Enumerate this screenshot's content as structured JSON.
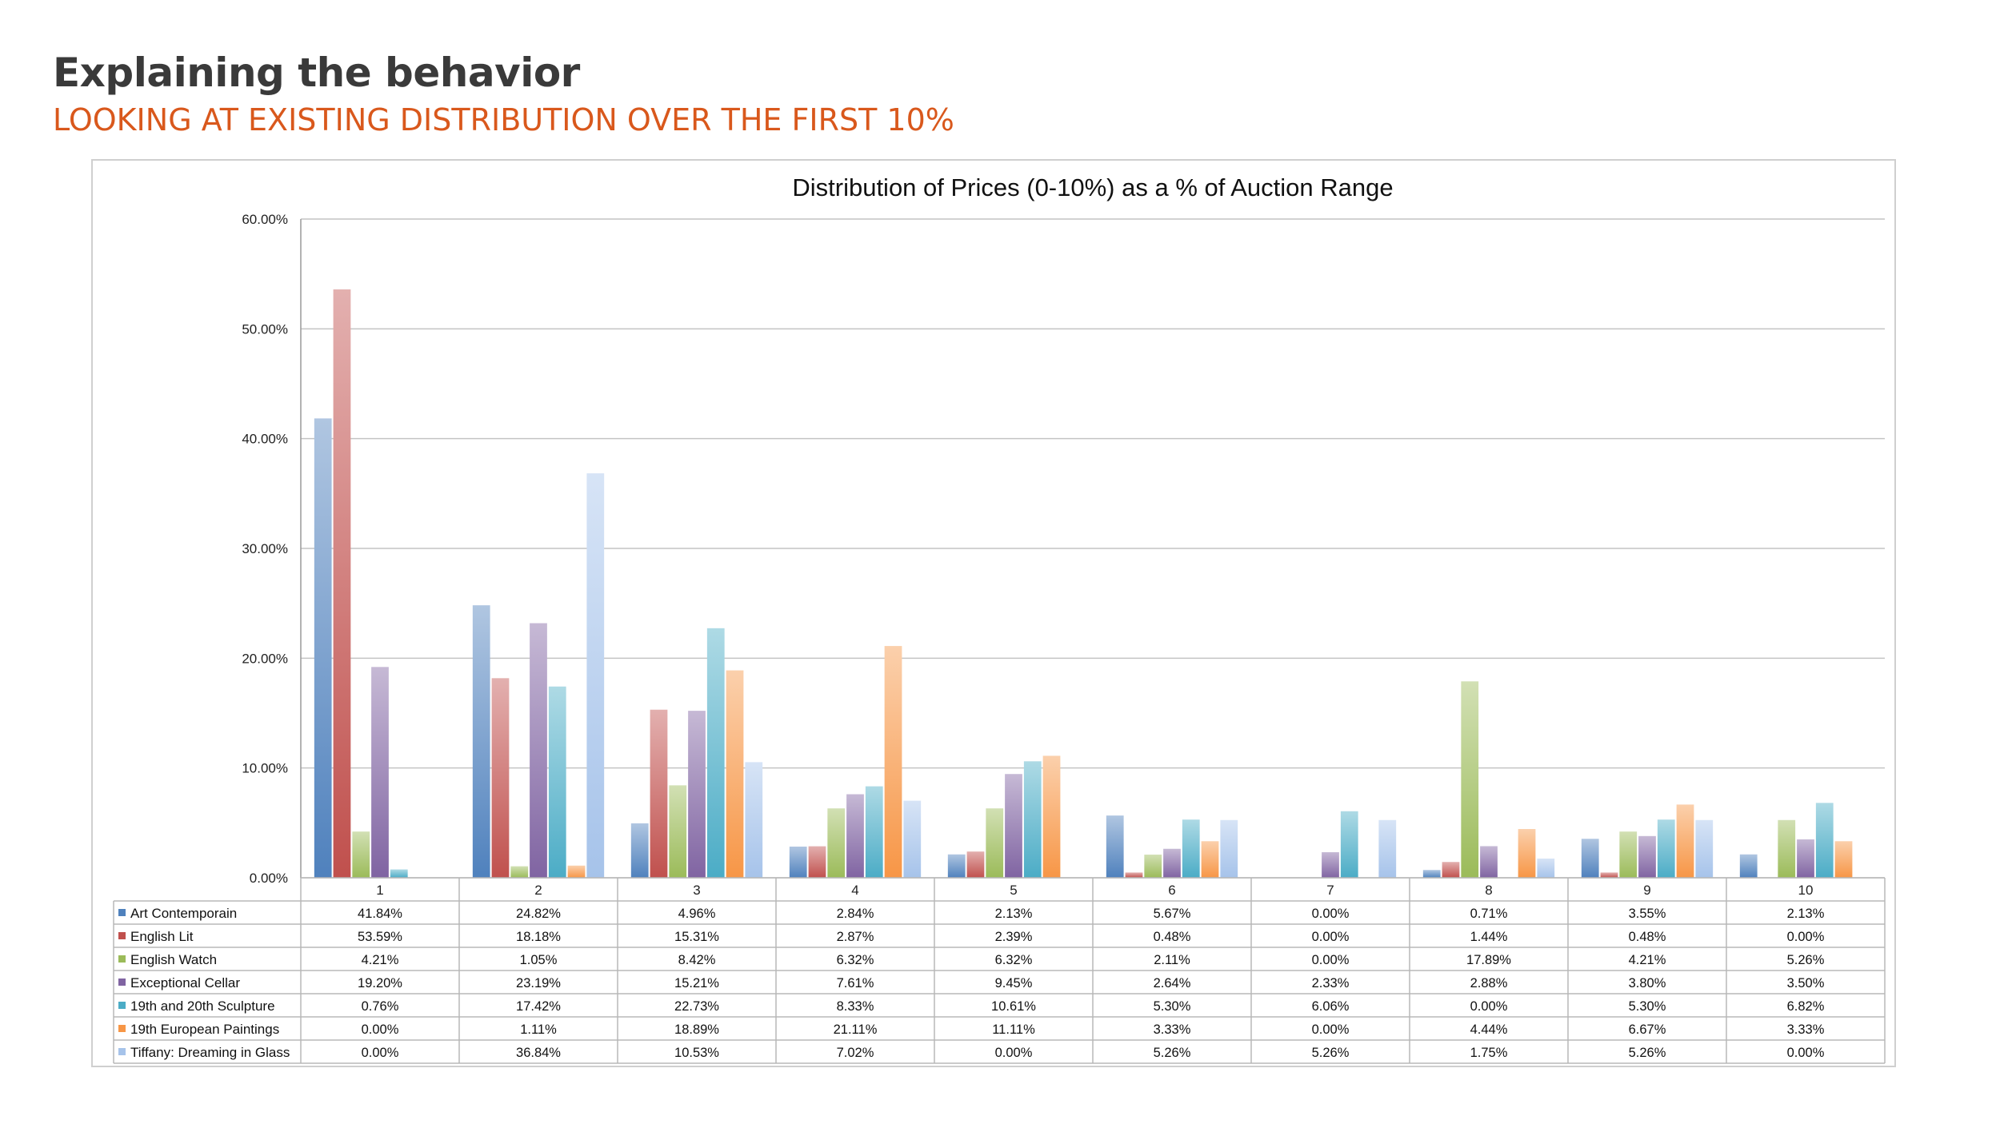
{
  "slide": {
    "title": "Explaining the behavior",
    "subtitle": "LOOKING AT EXISTING DISTRIBUTION OVER THE FIRST 10%"
  },
  "chart_data": {
    "type": "bar",
    "title": "Distribution of Prices (0-10%) as a % of Auction Range",
    "xlabel": "",
    "ylabel": "",
    "ylim": [
      0,
      60
    ],
    "y_ticks": [
      "0.00%",
      "10.00%",
      "20.00%",
      "30.00%",
      "40.00%",
      "50.00%",
      "60.00%"
    ],
    "grid": true,
    "legend_placement": "data-table-left",
    "categories": [
      "1",
      "2",
      "3",
      "4",
      "5",
      "6",
      "7",
      "8",
      "9",
      "10"
    ],
    "series": [
      {
        "name": "Art Contemporain",
        "color": "#4f81bd",
        "values": [
          41.84,
          24.82,
          4.96,
          2.84,
          2.13,
          5.67,
          0.0,
          0.71,
          3.55,
          2.13
        ],
        "labels": [
          "41.84%",
          "24.82%",
          "4.96%",
          "2.84%",
          "2.13%",
          "5.67%",
          "0.00%",
          "0.71%",
          "3.55%",
          "2.13%"
        ]
      },
      {
        "name": "English Lit",
        "color": "#c0504d",
        "values": [
          53.59,
          18.18,
          15.31,
          2.87,
          2.39,
          0.48,
          0.0,
          1.44,
          0.48,
          0.0
        ],
        "labels": [
          "53.59%",
          "18.18%",
          "15.31%",
          "2.87%",
          "2.39%",
          "0.48%",
          "0.00%",
          "1.44%",
          "0.48%",
          "0.00%"
        ]
      },
      {
        "name": "English Watch",
        "color": "#9bbb59",
        "values": [
          4.21,
          1.05,
          8.42,
          6.32,
          6.32,
          2.11,
          0.0,
          17.89,
          4.21,
          5.26
        ],
        "labels": [
          "4.21%",
          "1.05%",
          "8.42%",
          "6.32%",
          "6.32%",
          "2.11%",
          "0.00%",
          "17.89%",
          "4.21%",
          "5.26%"
        ]
      },
      {
        "name": "Exceptional Cellar",
        "color": "#8064a2",
        "values": [
          19.2,
          23.19,
          15.21,
          7.61,
          9.45,
          2.64,
          2.33,
          2.88,
          3.8,
          3.5
        ],
        "labels": [
          "19.20%",
          "23.19%",
          "15.21%",
          "7.61%",
          "9.45%",
          "2.64%",
          "2.33%",
          "2.88%",
          "3.80%",
          "3.50%"
        ]
      },
      {
        "name": "19th and 20th Sculpture",
        "color": "#4bacc6",
        "values": [
          0.76,
          17.42,
          22.73,
          8.33,
          10.61,
          5.3,
          6.06,
          0.0,
          5.3,
          6.82
        ],
        "labels": [
          "0.76%",
          "17.42%",
          "22.73%",
          "8.33%",
          "10.61%",
          "5.30%",
          "6.06%",
          "0.00%",
          "5.30%",
          "6.82%"
        ]
      },
      {
        "name": "19th European Paintings",
        "color": "#f79646",
        "values": [
          0.0,
          1.11,
          18.89,
          21.11,
          11.11,
          3.33,
          0.0,
          4.44,
          6.67,
          3.33
        ],
        "labels": [
          "0.00%",
          "1.11%",
          "18.89%",
          "21.11%",
          "11.11%",
          "3.33%",
          "0.00%",
          "4.44%",
          "6.67%",
          "3.33%"
        ]
      },
      {
        "name": "Tiffany: Dreaming in Glass",
        "color": "#a6c3ea",
        "values": [
          0.0,
          36.84,
          10.53,
          7.02,
          0.0,
          5.26,
          5.26,
          1.75,
          5.26,
          0.0
        ],
        "labels": [
          "0.00%",
          "36.84%",
          "10.53%",
          "7.02%",
          "0.00%",
          "5.26%",
          "5.26%",
          "1.75%",
          "5.26%",
          "0.00%"
        ]
      }
    ]
  }
}
